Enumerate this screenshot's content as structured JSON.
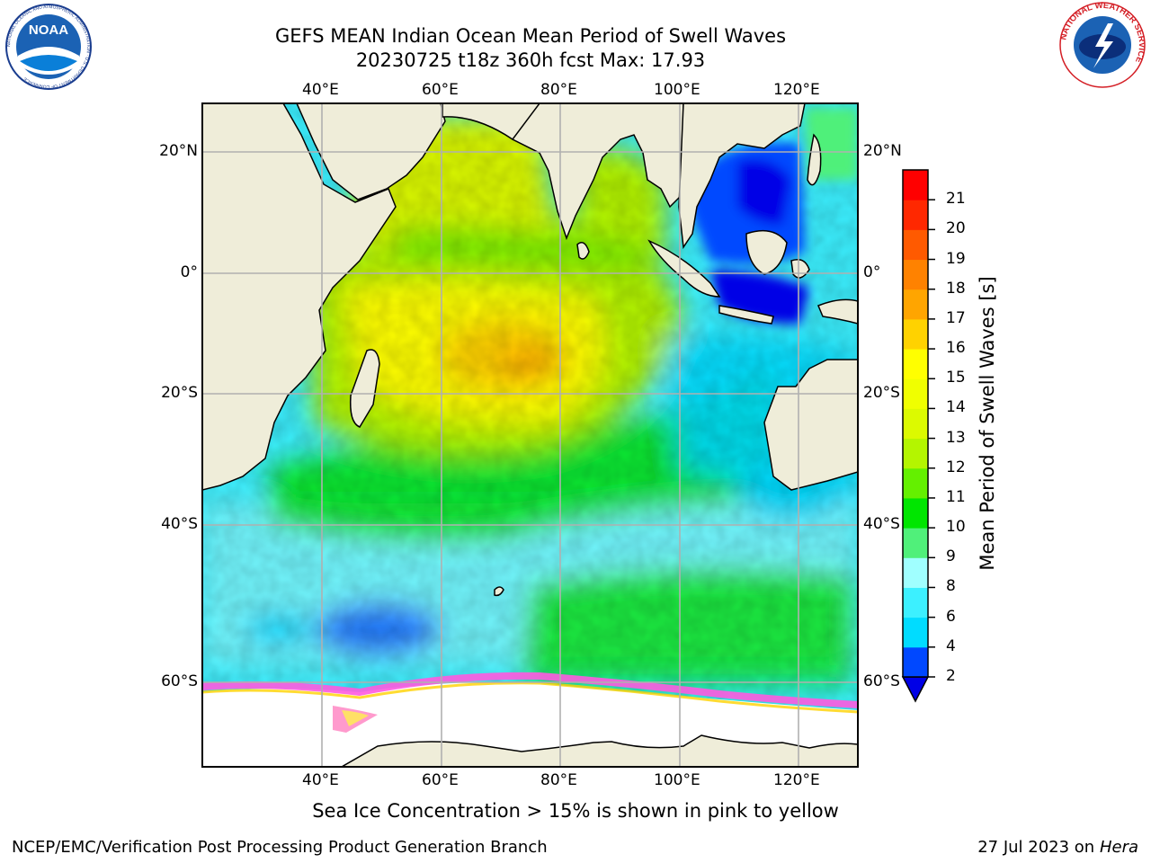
{
  "title": {
    "line1": "GEFS MEAN Indian Ocean Mean Period of Swell Waves",
    "line2": "20230725 t18z 360h fcst   Max: 17.93"
  },
  "logos": {
    "left": "NOAA",
    "left_ring_text": "NATIONAL OCEANIC AND ATMOSPHERIC ADMINISTRATION · U.S. DEPARTMENT OF COMMERCE",
    "right_ring_text": "NATIONAL WEATHER SERVICE"
  },
  "axes": {
    "lon_labels": [
      "40°E",
      "60°E",
      "80°E",
      "100°E",
      "120°E"
    ],
    "lat_labels": [
      "20°N",
      "0°",
      "20°S",
      "40°S",
      "60°S"
    ]
  },
  "colorbar": {
    "label": "Mean Period of Swell Waves [s]",
    "ticks": [
      "2",
      "4",
      "6",
      "8",
      "9",
      "10",
      "11",
      "12",
      "13",
      "14",
      "15",
      "16",
      "17",
      "18",
      "19",
      "20",
      "21"
    ],
    "colors": [
      "#0048ff",
      "#00dcff",
      "#3cf0ff",
      "#a0ffff",
      "#50f07a",
      "#00e600",
      "#64f000",
      "#b4f500",
      "#dcfa00",
      "#f0ff00",
      "#ffff00",
      "#ffd200",
      "#ffa500",
      "#ff8200",
      "#ff5a00",
      "#ff2800",
      "#ff0000"
    ],
    "extend_color": "#0000e6"
  },
  "note": "Sea Ice Concentration > 15% is shown in pink to yellow",
  "footer": {
    "left": "NCEP/EMC/Verification Post Processing Product Generation Branch",
    "date": "27 Jul 2023 on ",
    "machine": "Hera"
  }
}
